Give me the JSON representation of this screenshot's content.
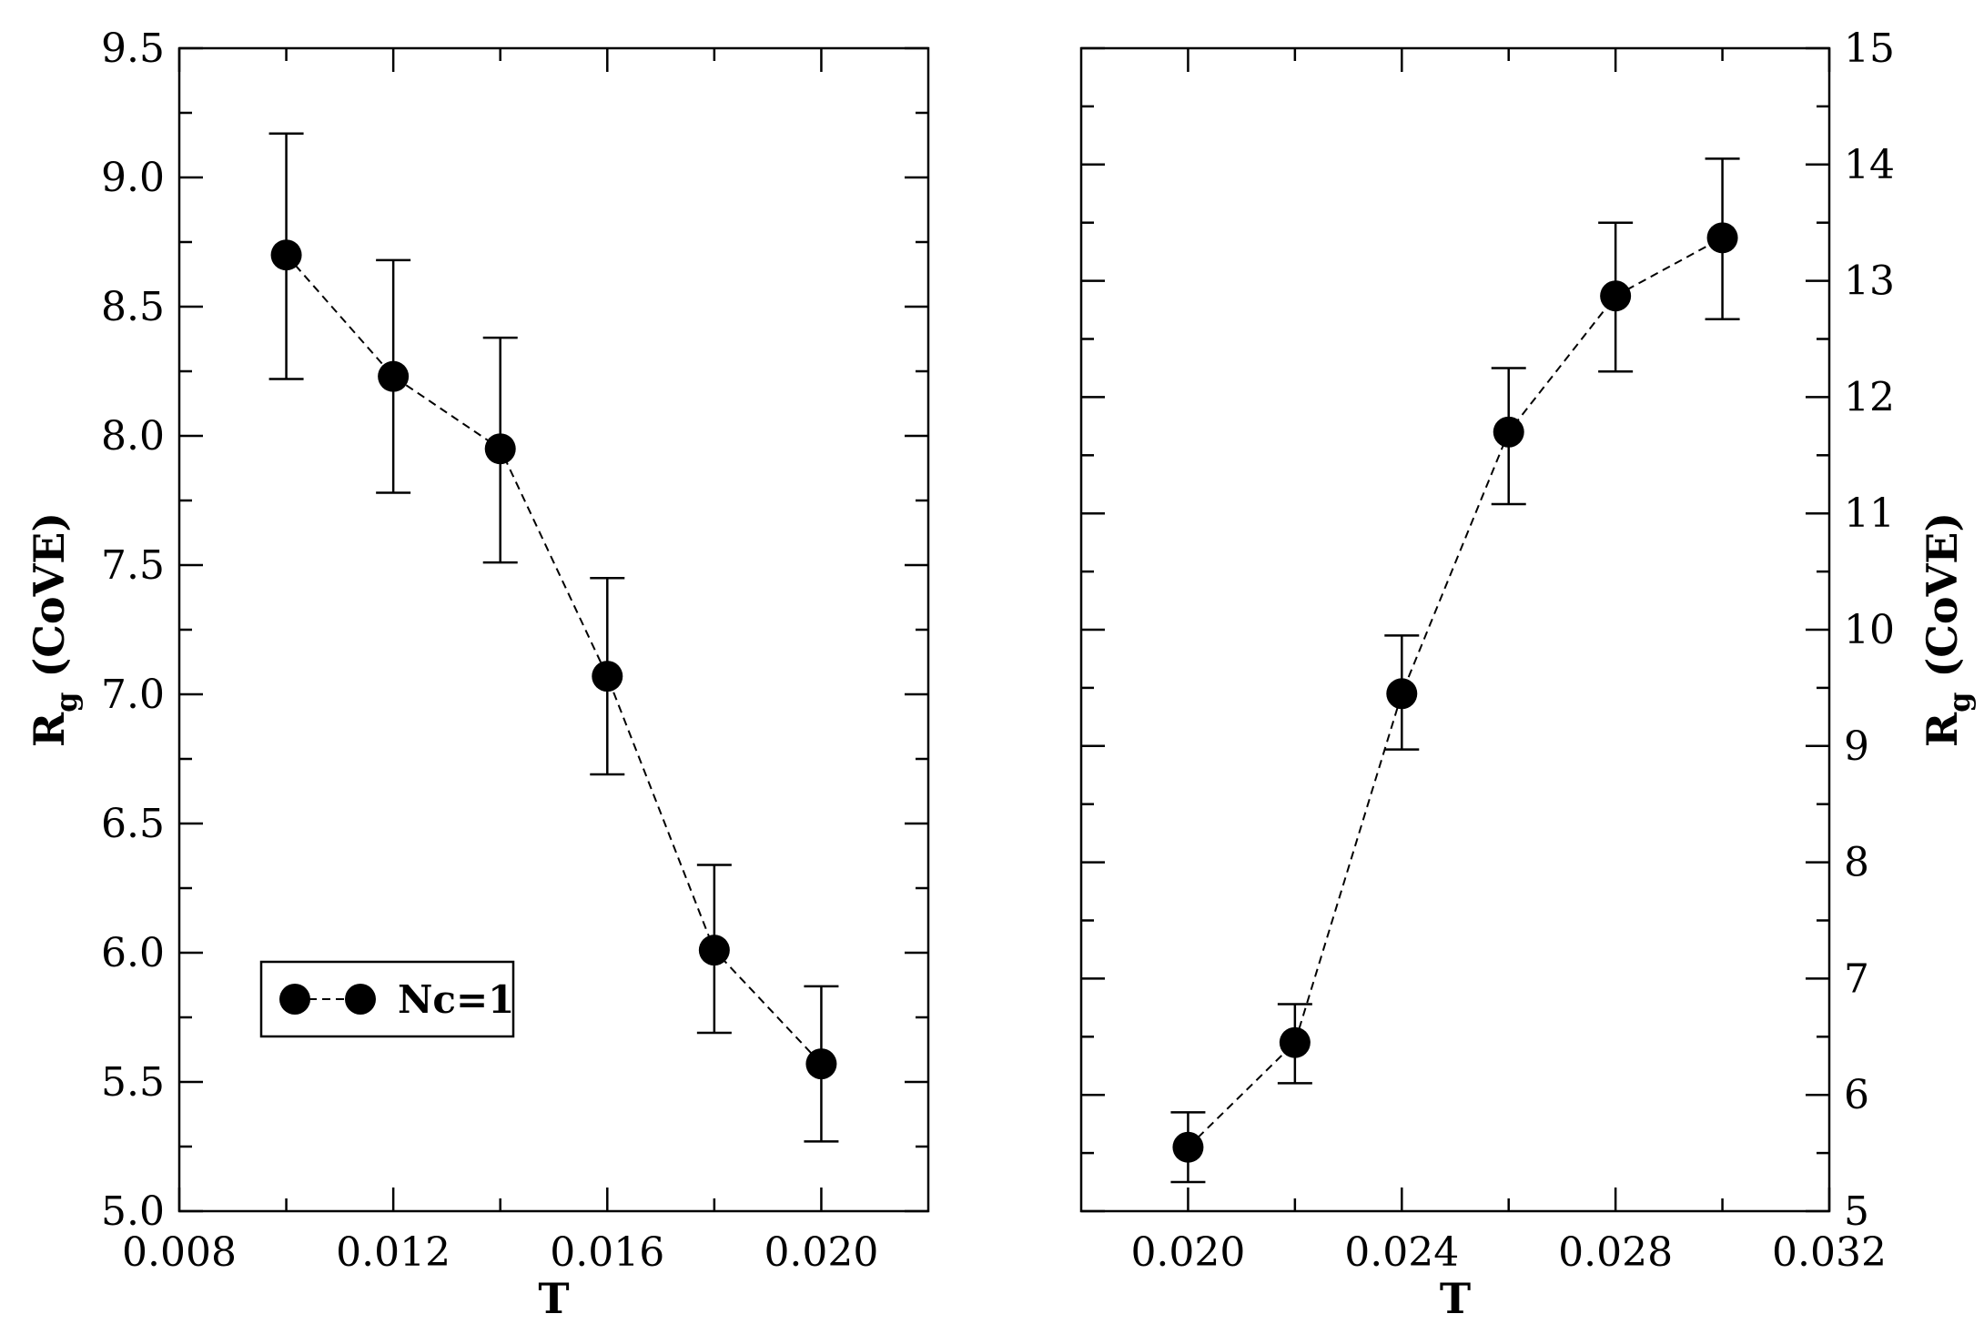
{
  "chart_data": [
    {
      "type": "scatter",
      "xlabel": "T",
      "ylabel": "R",
      "ylabel_sub": "g",
      "ylabel_suffix": " (CoVE)",
      "xlim": [
        0.008,
        0.022
      ],
      "ylim": [
        5.0,
        9.5
      ],
      "xticks": [
        0.008,
        0.012,
        0.016,
        0.02
      ],
      "xtick_labels": [
        "0.008",
        "0.012",
        "0.016",
        "0.020"
      ],
      "xminor": [
        0.01,
        0.014,
        0.018
      ],
      "yticks": [
        5.0,
        5.5,
        6.0,
        6.5,
        7.0,
        7.5,
        8.0,
        8.5,
        9.0,
        9.5
      ],
      "ytick_labels": [
        "5.0",
        "5.5",
        "6.0",
        "6.5",
        "7.0",
        "7.5",
        "8.0",
        "8.5",
        "9.0",
        "9.5"
      ],
      "yminor": [
        5.25,
        5.75,
        6.25,
        6.75,
        7.25,
        7.75,
        8.25,
        8.75,
        9.25
      ],
      "ylabel_side": "left",
      "line_style": "dashed",
      "legend": {
        "label": "Nc=1",
        "position": "bottom-left"
      },
      "series": [
        {
          "name": "Nc=1",
          "x": [
            0.01,
            0.012,
            0.014,
            0.016,
            0.018,
            0.02
          ],
          "y": [
            8.7,
            8.23,
            7.95,
            7.07,
            6.01,
            5.57
          ],
          "yerr_low": [
            8.22,
            7.78,
            7.51,
            6.69,
            5.69,
            5.27
          ],
          "yerr_high": [
            9.17,
            8.68,
            8.38,
            7.45,
            6.34,
            5.87
          ]
        }
      ]
    },
    {
      "type": "scatter",
      "xlabel": "T",
      "ylabel": "R",
      "ylabel_sub": "g",
      "ylabel_suffix": " (CoVE)",
      "xlim": [
        0.018,
        0.032
      ],
      "ylim": [
        5,
        15
      ],
      "xticks": [
        0.02,
        0.024,
        0.028,
        0.032
      ],
      "xtick_labels": [
        "0.020",
        "0.024",
        "0.028",
        "0.032"
      ],
      "xminor": [
        0.022,
        0.026,
        0.03
      ],
      "yticks": [
        5,
        6,
        7,
        8,
        9,
        10,
        11,
        12,
        13,
        14,
        15
      ],
      "ytick_labels": [
        "5",
        "6",
        "7",
        "8",
        "9",
        "10",
        "11",
        "12",
        "13",
        "14",
        "15"
      ],
      "yminor": [],
      "ylabel_side": "right",
      "line_style": "dashed",
      "series": [
        {
          "x": [
            0.02,
            0.022,
            0.024,
            0.026,
            0.028,
            0.03
          ],
          "y": [
            5.55,
            6.45,
            9.45,
            11.7,
            12.87,
            13.37
          ],
          "yerr_low": [
            5.25,
            6.1,
            8.97,
            11.08,
            12.22,
            12.67
          ],
          "yerr_high": [
            5.85,
            6.78,
            9.95,
            12.25,
            13.5,
            14.05
          ]
        }
      ]
    }
  ]
}
